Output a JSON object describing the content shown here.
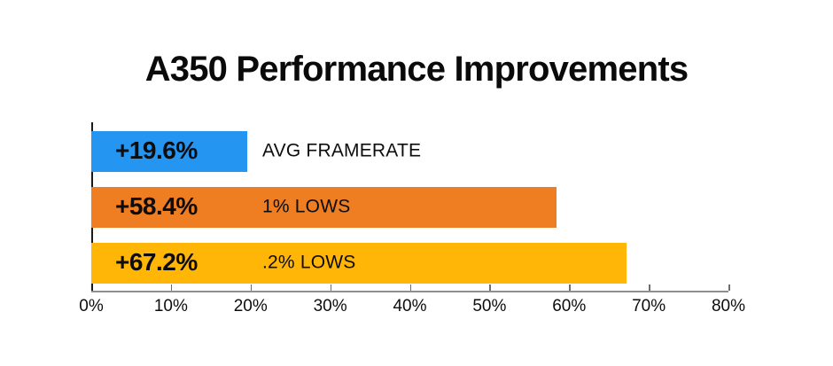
{
  "page": {
    "background_color": "#ffffff"
  },
  "chart_data": {
    "type": "bar",
    "orientation": "horizontal",
    "title": "A350 Performance Improvements",
    "categories": [
      "AVG FRAMERATE",
      "1% LOWS",
      ".2% LOWS"
    ],
    "values": [
      19.6,
      58.4,
      67.2
    ],
    "value_labels": [
      "+19.6%",
      "+58.4%",
      "+67.2%"
    ],
    "bar_colors": [
      "#2595f2",
      "#ef7d22",
      "#ffb606"
    ],
    "xlim": [
      0,
      80
    ],
    "x_tick_labels": [
      "0%",
      "10%",
      "20%",
      "30%",
      "40%",
      "50%",
      "60%",
      "70%",
      "80%"
    ],
    "grid": "off",
    "legend": "none",
    "axis_color": "#8e8e8e",
    "y_axis_color": "#1a1a1a",
    "text_color": "#0d0d0d"
  }
}
